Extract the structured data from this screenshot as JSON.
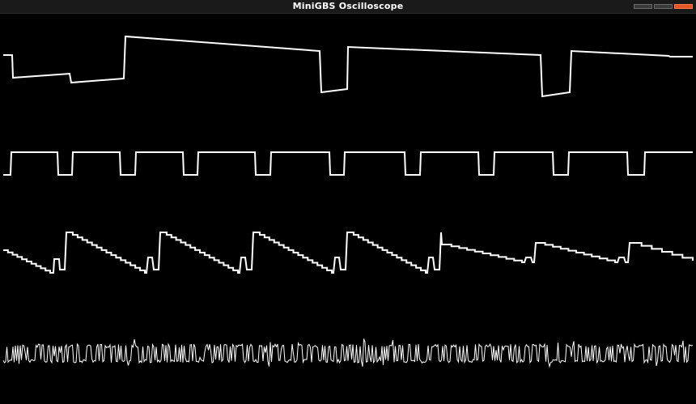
{
  "window": {
    "title": "MiniGBS Oscilloscope"
  },
  "channels": [
    {
      "name": "channel-1-wave",
      "color": "#ffffff"
    },
    {
      "name": "channel-2-wave",
      "color": "#ffffff"
    },
    {
      "name": "channel-3-wave",
      "color": "#ffffff"
    },
    {
      "name": "channel-4-wave",
      "color": "#ffffff"
    }
  ],
  "colors": {
    "background": "#000000",
    "trace": "#ffffff",
    "close_button": "#e5552a"
  }
}
